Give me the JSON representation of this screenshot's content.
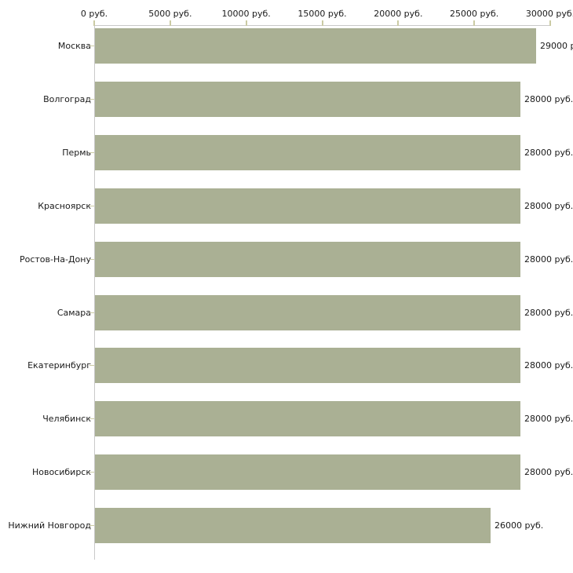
{
  "chart_data": {
    "type": "bar",
    "orientation": "horizontal",
    "title": "",
    "xlabel": "",
    "ylabel": "",
    "xlim": [
      0,
      30000
    ],
    "grid": "off",
    "legend": "none",
    "axis_position": "top",
    "x_tick_values": [
      0,
      5000,
      10000,
      15000,
      20000,
      25000,
      30000
    ],
    "x_tick_labels": [
      "0 руб.",
      "5000 руб.",
      "10000 руб.",
      "15000 руб.",
      "20000 руб.",
      "25000 руб.",
      "30000 руб."
    ],
    "categories": [
      "Москва",
      "Волгоград",
      "Пермь",
      "Красноярск",
      "Ростов-На-Дону",
      "Самара",
      "Екатеринбург",
      "Челябинск",
      "Новосибирск",
      "Нижний Новгород"
    ],
    "values": [
      29000,
      28000,
      28000,
      28000,
      28000,
      28000,
      28000,
      28000,
      28000,
      26000
    ],
    "bar_labels": [
      "29000 р",
      "28000 руб.",
      "28000 руб.",
      "28000 руб.",
      "28000 руб.",
      "28000 руб.",
      "28000 руб.",
      "28000 руб.",
      "28000 руб.",
      "26000 руб."
    ],
    "colors": {
      "bar": "#aab094",
      "axis_line": "#c9c9c9",
      "tick_mark": "#cbcba4",
      "text": "#1a1a1a",
      "background": "#ffffff"
    }
  }
}
